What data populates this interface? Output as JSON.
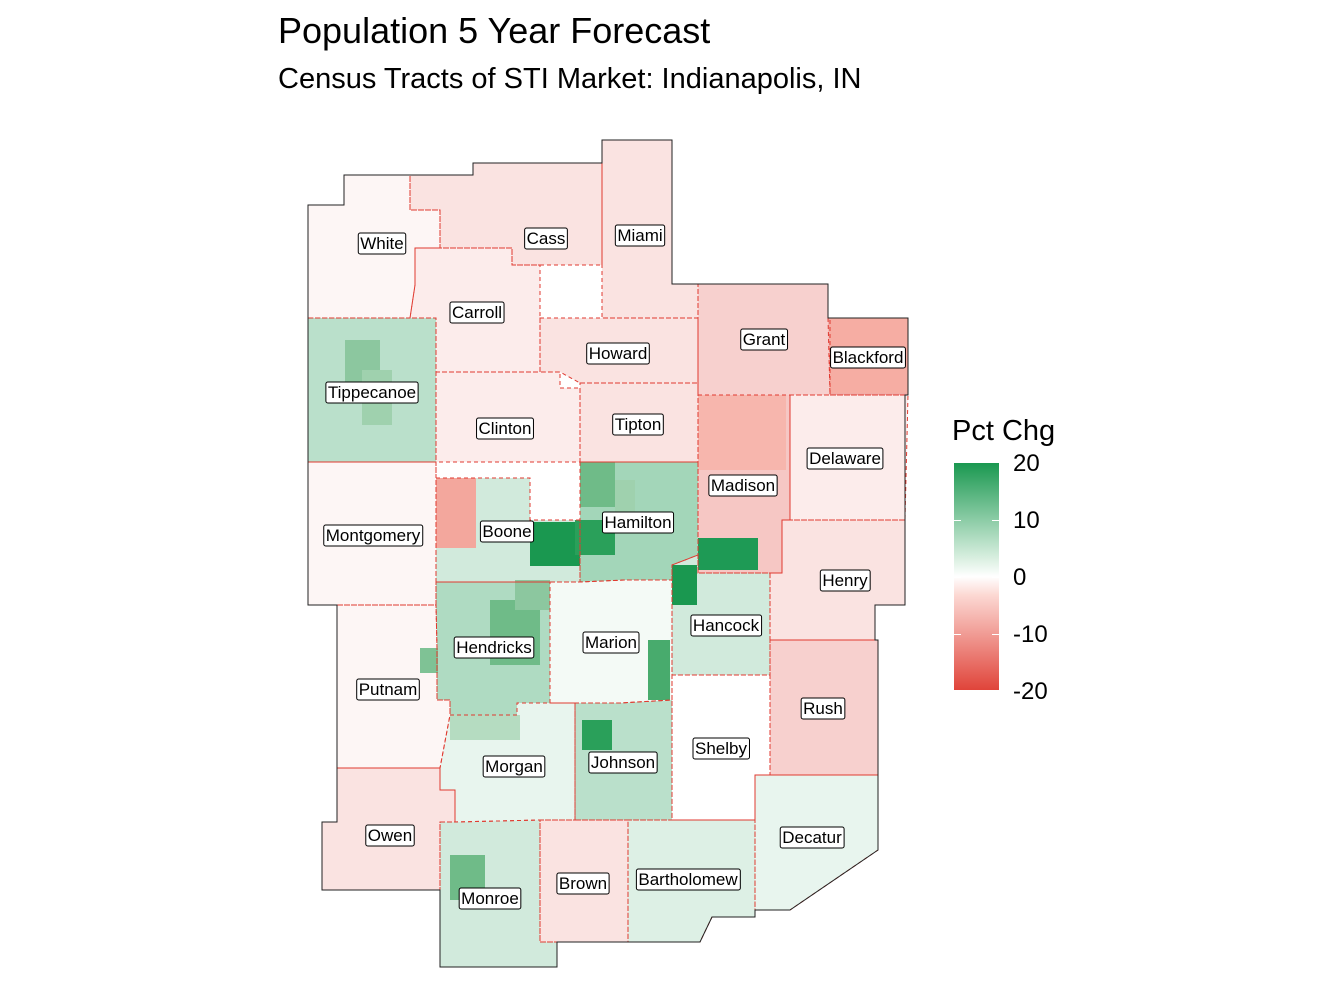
{
  "title": "Population 5 Year Forecast",
  "subtitle": "Census Tracts of STI Market: Indianapolis, IN",
  "legend": {
    "title": "Pct Chg",
    "labels": [
      "20",
      "10",
      "0",
      "-10",
      "-20"
    ],
    "high_color": "#1a9850",
    "mid_color": "#ffffff",
    "low_color": "#e0443a"
  },
  "counties": [
    {
      "name": "White",
      "pct_chg": -1
    },
    {
      "name": "Cass",
      "pct_chg": -3
    },
    {
      "name": "Miami",
      "pct_chg": -3
    },
    {
      "name": "Carroll",
      "pct_chg": -2
    },
    {
      "name": "Howard",
      "pct_chg": -3
    },
    {
      "name": "Grant",
      "pct_chg": -5
    },
    {
      "name": "Blackford",
      "pct_chg": -9
    },
    {
      "name": "Tippecanoe",
      "pct_chg": 6
    },
    {
      "name": "Clinton",
      "pct_chg": -2
    },
    {
      "name": "Tipton",
      "pct_chg": -3
    },
    {
      "name": "Delaware",
      "pct_chg": -2
    },
    {
      "name": "Madison",
      "pct_chg": -6
    },
    {
      "name": "Montgomery",
      "pct_chg": -1
    },
    {
      "name": "Boone",
      "pct_chg": 4
    },
    {
      "name": "Hamilton",
      "pct_chg": 8
    },
    {
      "name": "Henry",
      "pct_chg": -3
    },
    {
      "name": "Hancock",
      "pct_chg": 4
    },
    {
      "name": "Marion",
      "pct_chg": 1
    },
    {
      "name": "Hendricks",
      "pct_chg": 7
    },
    {
      "name": "Putnam",
      "pct_chg": -1
    },
    {
      "name": "Rush",
      "pct_chg": -5
    },
    {
      "name": "Shelby",
      "pct_chg": 0
    },
    {
      "name": "Johnson",
      "pct_chg": 6
    },
    {
      "name": "Morgan",
      "pct_chg": 2
    },
    {
      "name": "Owen",
      "pct_chg": -3
    },
    {
      "name": "Decatur",
      "pct_chg": 2
    },
    {
      "name": "Brown",
      "pct_chg": -3
    },
    {
      "name": "Bartholomew",
      "pct_chg": 3
    },
    {
      "name": "Monroe",
      "pct_chg": 4
    }
  ]
}
